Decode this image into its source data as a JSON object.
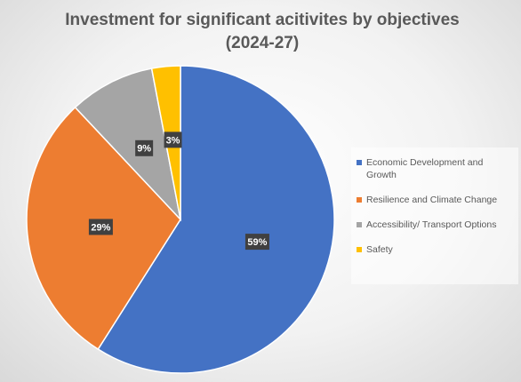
{
  "chart_data": {
    "type": "pie",
    "title": "Investment for significant acitivites by objectives (2024-27)",
    "categories": [
      "Economic Development and Growth",
      "Resilience and Climate Change",
      "Accessibility/ Transport Options",
      "Safety"
    ],
    "values": [
      59,
      29,
      9,
      3
    ],
    "value_labels": [
      "59%",
      "29%",
      "9%",
      "3%"
    ],
    "colors": [
      "#4472c4",
      "#ed7d31",
      "#a5a5a5",
      "#ffc000"
    ],
    "legend": "right"
  }
}
